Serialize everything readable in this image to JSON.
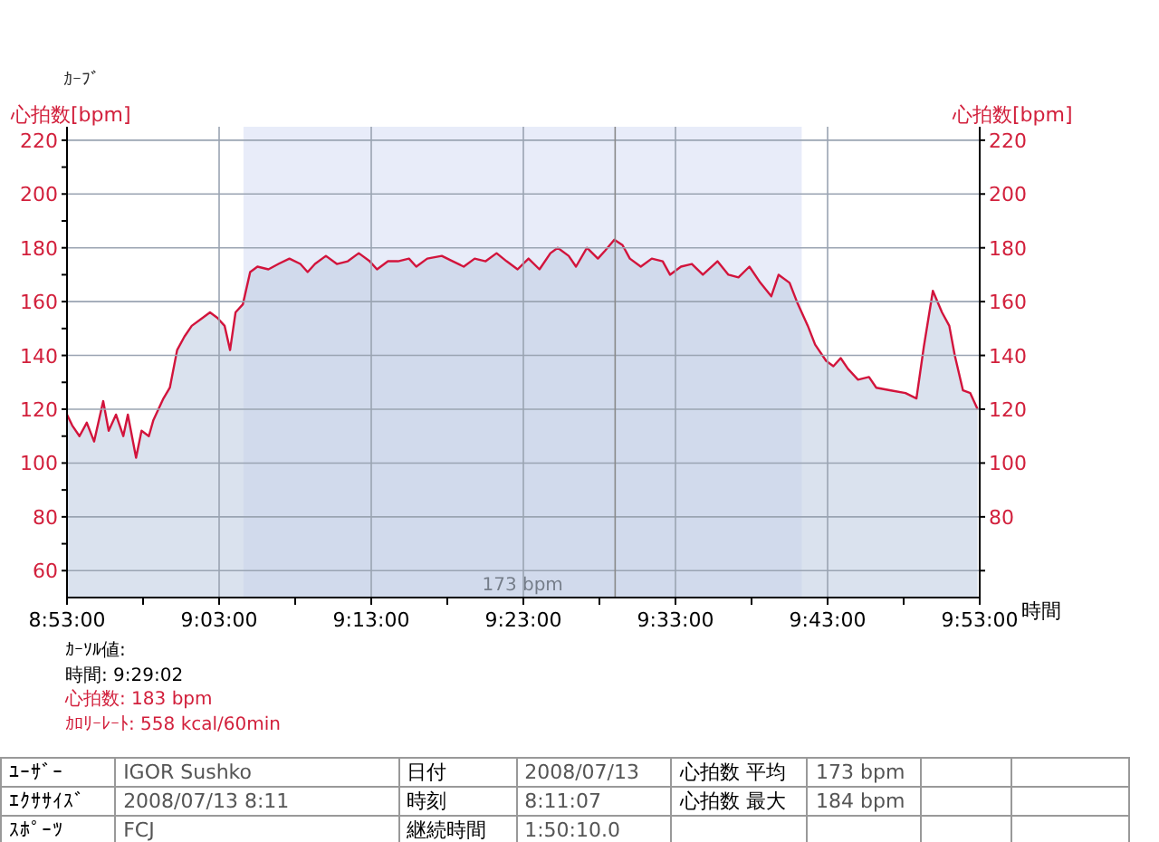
{
  "chart_data": {
    "type": "area",
    "title": "ｶｰﾌﾞ",
    "ylabel": "心拍数[bpm]",
    "y2label": "心拍数[bpm]",
    "xlabel": "時間",
    "x": [
      8.8834,
      8.889,
      8.897,
      8.905,
      8.913,
      8.923,
      8.929,
      8.937,
      8.945,
      8.95,
      8.959,
      8.965,
      8.973,
      8.978,
      8.989,
      8.996,
      9.004,
      9.012,
      9.02,
      9.032,
      9.04,
      9.048,
      9.056,
      9.062,
      9.068,
      9.076,
      9.084,
      9.092,
      9.104,
      9.115,
      9.127,
      9.139,
      9.147,
      9.155,
      9.167,
      9.179,
      9.191,
      9.203,
      9.215,
      9.223,
      9.235,
      9.246,
      9.258,
      9.266,
      9.278,
      9.294,
      9.306,
      9.318,
      9.33,
      9.342,
      9.354,
      9.365,
      9.377,
      9.389,
      9.401,
      9.413,
      9.421,
      9.433,
      9.441,
      9.453,
      9.465,
      9.473,
      9.483,
      9.492,
      9.5,
      9.512,
      9.524,
      9.536,
      9.544,
      9.556,
      9.568,
      9.58,
      9.596,
      9.608,
      9.619,
      9.631,
      9.643,
      9.655,
      9.663,
      9.675,
      9.683,
      9.695,
      9.703,
      9.715,
      9.723,
      9.731,
      9.739,
      9.75,
      9.762,
      9.77,
      9.786,
      9.802,
      9.814,
      9.822,
      9.832,
      9.842,
      9.85,
      9.856,
      9.865,
      9.873,
      9.881
    ],
    "series": [
      {
        "color": "#d2143c",
        "values": [
          118,
          114,
          110,
          115,
          108,
          123,
          112,
          118,
          110,
          118,
          102,
          112,
          110,
          116,
          124,
          128,
          142,
          147,
          151,
          154,
          156,
          154,
          151,
          142,
          156,
          159,
          171,
          173,
          172,
          174,
          176,
          174,
          171,
          174,
          177,
          174,
          175,
          178,
          175,
          172,
          175,
          175,
          176,
          173,
          176,
          177,
          175,
          173,
          176,
          175,
          178,
          175,
          172,
          176,
          172,
          178,
          180,
          177,
          173,
          180,
          176,
          179,
          183,
          181,
          176,
          173,
          176,
          175,
          170,
          173,
          174,
          170,
          175,
          170,
          169,
          173,
          167,
          162,
          170,
          167,
          160,
          151,
          144,
          138,
          136,
          139,
          135,
          131,
          132,
          128,
          127,
          126,
          124,
          143,
          164,
          156,
          151,
          140,
          127,
          126,
          120
        ]
      }
    ],
    "xlim": [
      8.883333,
      9.883333
    ],
    "xticks": [
      {
        "value": 8.883333,
        "label": "8:53:00"
      },
      {
        "value": 8.966667,
        "label": null
      },
      {
        "value": 9.05,
        "label": "9:03:00"
      },
      {
        "value": 9.133333,
        "label": null
      },
      {
        "value": 9.216667,
        "label": "9:13:00"
      },
      {
        "value": 9.3,
        "label": null
      },
      {
        "value": 9.383333,
        "label": "9:23:00"
      },
      {
        "value": 9.466667,
        "label": null
      },
      {
        "value": 9.55,
        "label": "9:33:00"
      },
      {
        "value": 9.633333,
        "label": null
      },
      {
        "value": 9.716667,
        "label": "9:43:00"
      },
      {
        "value": 9.8,
        "label": null
      },
      {
        "value": 9.883333,
        "label": "9:53:00"
      }
    ],
    "ylim": [
      50,
      225
    ],
    "yticks": [
      60,
      {
        "value": 70,
        "label": null
      },
      80,
      {
        "value": 90,
        "label": null
      },
      100,
      {
        "value": 110,
        "label": null
      },
      120,
      {
        "value": 130,
        "label": null
      },
      140,
      {
        "value": 150,
        "label": null
      },
      160,
      {
        "value": 170,
        "label": null
      },
      180,
      {
        "value": 190,
        "label": null
      },
      200,
      {
        "value": 210,
        "label": null
      },
      220
    ],
    "y2lim": [
      50,
      225
    ],
    "y2ticks": [
      {
        "value": 60,
        "label": null
      },
      80,
      100,
      120,
      140,
      160,
      180,
      200,
      220
    ],
    "grid": true,
    "ref_lines": [
      {
        "axis": "x",
        "value": 9.48389,
        "color": "#8a8a8a"
      }
    ],
    "bands": [
      {
        "axis": "x",
        "from": 9.0767,
        "to": 9.6883,
        "label": "173 bpm",
        "color": "#1f45c8"
      }
    ],
    "annotations": [
      "ｶｰｿﾙ値:",
      "時間: 9:29:02",
      "心拍数: 183 bpm",
      "ｶﾛﾘｰﾚｰﾄ: 558 kcal/60min",
      "ﾕｰｻﾞｰ",
      "IGOR Sushko",
      "日付",
      "2008/07/13",
      "心拍数 平均",
      "173 bpm",
      "ｴｸｻｻｲｽﾞ",
      "2008/07/13 8:11",
      "時刻",
      "8:11:07",
      "心拍数 最大",
      "184 bpm",
      "ｽﾎﾟｰﾂ",
      "FCJ",
      "継続時間",
      "1:50:10.0"
    ]
  }
}
